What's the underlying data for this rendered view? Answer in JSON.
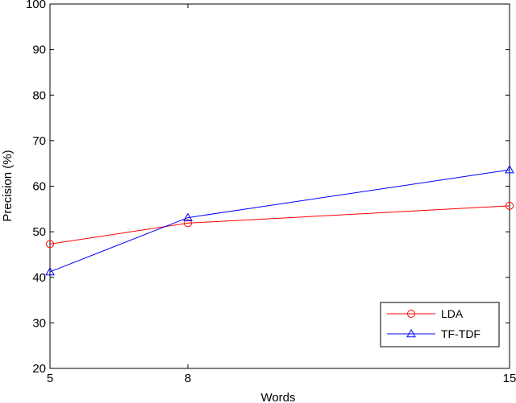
{
  "chart_data": {
    "type": "line",
    "title": "",
    "xlabel": "Words",
    "ylabel": "Precision (%)",
    "x": [
      5,
      8,
      15
    ],
    "xticks": [
      "5",
      "8",
      "15"
    ],
    "xlim": [
      5,
      15
    ],
    "ylim": [
      20,
      100
    ],
    "yticks": [
      20,
      30,
      40,
      50,
      60,
      70,
      80,
      90,
      100
    ],
    "grid": false,
    "legend_position": "bottom-right",
    "series": [
      {
        "name": "LDA",
        "values": [
          47.3,
          51.9,
          55.7
        ],
        "color": "#ff0000",
        "marker": "circle"
      },
      {
        "name": "TF-TDF",
        "values": [
          41.2,
          53.1,
          63.6
        ],
        "color": "#0000ff",
        "marker": "triangle"
      }
    ]
  }
}
